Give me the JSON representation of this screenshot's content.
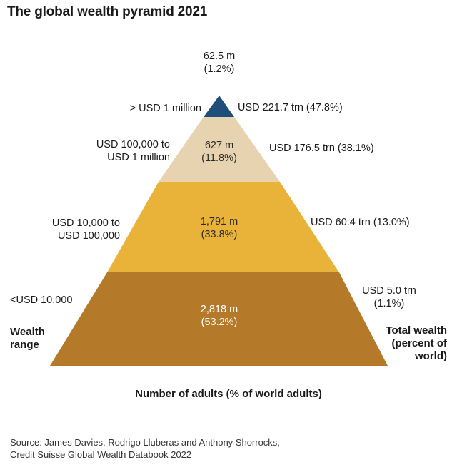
{
  "title": "The global wealth pyramid 2021",
  "axis": {
    "left": "Wealth\nrange",
    "right": "Total wealth\n(percent of\nworld)",
    "bottom": "Number of adults (% of world adults)"
  },
  "source": "Source: James Davies, Rodrigo Lluberas and Anthony Shorrocks,\nCredit Suisse Global Wealth Databook 2022",
  "colors": {
    "tier_top": "#1f4e79",
    "tier_2": "#e8d3b0",
    "tier_3": "#e9b33a",
    "tier_base": "#b5792a"
  },
  "chart_data": {
    "type": "pyramid",
    "title": "The global wealth pyramid 2021",
    "tiers": [
      {
        "range": "> USD 1 million",
        "adults": "62.5 m",
        "adults_share": "(1.2%)",
        "wealth": "USD 221.7 trn (47.8%)",
        "adults_millions": 62.5,
        "adults_pct": 1.2,
        "wealth_trn": 221.7,
        "wealth_pct": 47.8
      },
      {
        "range": "USD 100,000 to\nUSD 1 million",
        "adults": "627 m",
        "adults_share": "(11.8%)",
        "wealth": "USD 176.5 trn (38.1%)",
        "adults_millions": 627,
        "adults_pct": 11.8,
        "wealth_trn": 176.5,
        "wealth_pct": 38.1
      },
      {
        "range": "USD 10,000 to\nUSD 100,000",
        "adults": "1,791 m",
        "adults_share": "(33.8%)",
        "wealth": "USD 60.4 trn (13.0%)",
        "adults_millions": 1791,
        "adults_pct": 33.8,
        "wealth_trn": 60.4,
        "wealth_pct": 13.0
      },
      {
        "range": "<USD 10,000",
        "adults": "2,818 m",
        "adults_share": "(53.2%)",
        "wealth": "USD 5.0 trn\n(1.1%)",
        "adults_millions": 2818,
        "adults_pct": 53.2,
        "wealth_trn": 5.0,
        "wealth_pct": 1.1
      }
    ]
  }
}
